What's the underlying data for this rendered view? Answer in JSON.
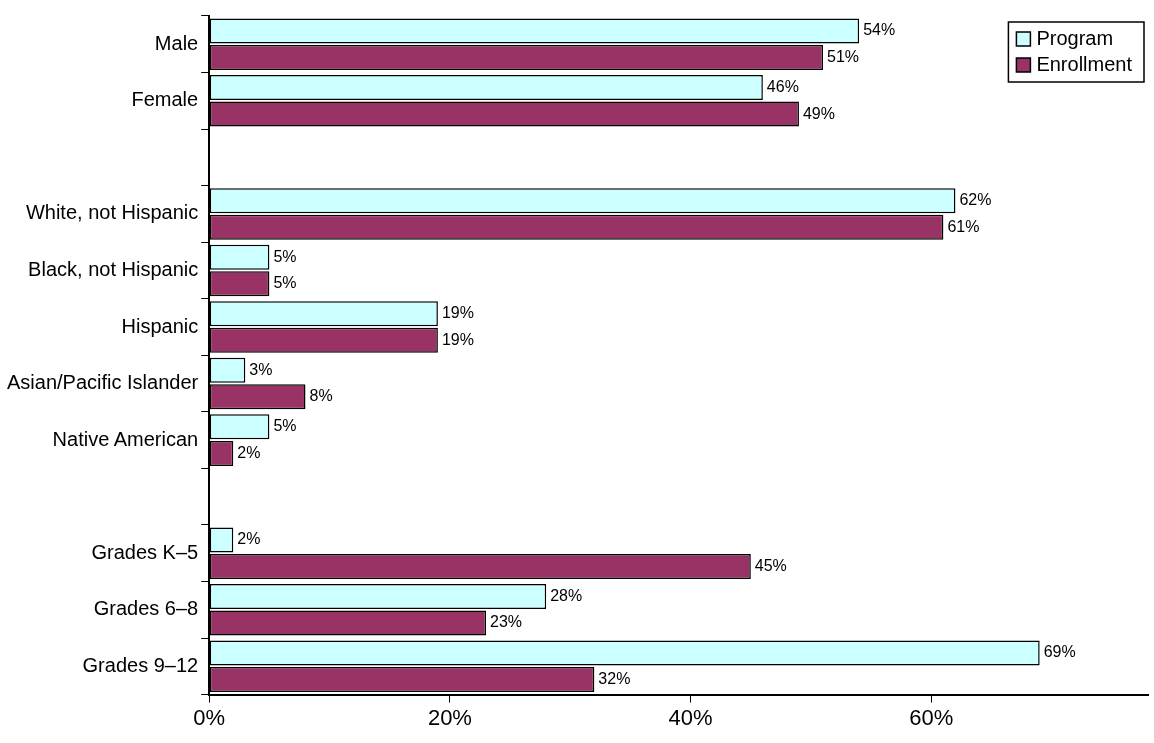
{
  "chart_data": {
    "type": "bar",
    "orientation": "horizontal",
    "categories": [
      "Male",
      "Female",
      null,
      "White, not Hispanic",
      "Black, not Hispanic",
      "Hispanic",
      "Asian/Pacific Islander",
      "Native American",
      null,
      "Grades K–5",
      "Grades 6–8",
      "Grades 9–12"
    ],
    "series": [
      {
        "name": "Program",
        "color": "#ccffff",
        "values": [
          54,
          46,
          null,
          62,
          5,
          19,
          3,
          5,
          null,
          2,
          28,
          69
        ],
        "value_labels": [
          "54%",
          "46%",
          null,
          "62%",
          "5%",
          "19%",
          "3%",
          "5%",
          null,
          "2%",
          "28%",
          "69%"
        ]
      },
      {
        "name": "Enrollment",
        "color": "#993366",
        "values": [
          51,
          49,
          null,
          61,
          5,
          19,
          8,
          2,
          null,
          45,
          23,
          32
        ],
        "value_labels": [
          "51%",
          "49%",
          null,
          "61%",
          "5%",
          "19%",
          "8%",
          "2%",
          null,
          "45%",
          "23%",
          "32%"
        ]
      }
    ],
    "xlim": [
      0,
      78
    ],
    "xticks": [
      {
        "value": 0,
        "label": "0%"
      },
      {
        "value": 20,
        "label": "20%"
      },
      {
        "value": 40,
        "label": "40%"
      },
      {
        "value": 60,
        "label": "60%"
      }
    ],
    "grid": false,
    "legend": "top right"
  }
}
